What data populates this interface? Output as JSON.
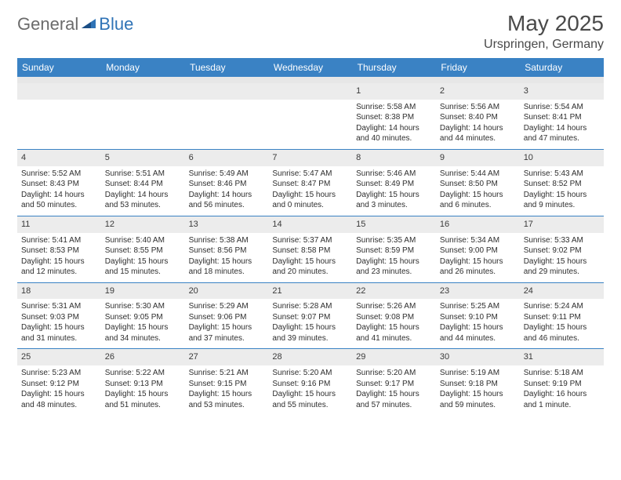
{
  "brand": {
    "part1": "General",
    "part2": "Blue"
  },
  "title": "May 2025",
  "location": "Urspringen, Germany",
  "colors": {
    "header_bg": "#3a82c4",
    "header_text": "#ffffff",
    "daynum_bg": "#ececec",
    "body_text": "#2e2e2e",
    "accent": "#2f73b6"
  },
  "dow": [
    "Sunday",
    "Monday",
    "Tuesday",
    "Wednesday",
    "Thursday",
    "Friday",
    "Saturday"
  ],
  "weeks": [
    [
      null,
      null,
      null,
      null,
      {
        "n": "1",
        "sr": "5:58 AM",
        "ss": "8:38 PM",
        "dl": "14 hours and 40 minutes."
      },
      {
        "n": "2",
        "sr": "5:56 AM",
        "ss": "8:40 PM",
        "dl": "14 hours and 44 minutes."
      },
      {
        "n": "3",
        "sr": "5:54 AM",
        "ss": "8:41 PM",
        "dl": "14 hours and 47 minutes."
      }
    ],
    [
      {
        "n": "4",
        "sr": "5:52 AM",
        "ss": "8:43 PM",
        "dl": "14 hours and 50 minutes."
      },
      {
        "n": "5",
        "sr": "5:51 AM",
        "ss": "8:44 PM",
        "dl": "14 hours and 53 minutes."
      },
      {
        "n": "6",
        "sr": "5:49 AM",
        "ss": "8:46 PM",
        "dl": "14 hours and 56 minutes."
      },
      {
        "n": "7",
        "sr": "5:47 AM",
        "ss": "8:47 PM",
        "dl": "15 hours and 0 minutes."
      },
      {
        "n": "8",
        "sr": "5:46 AM",
        "ss": "8:49 PM",
        "dl": "15 hours and 3 minutes."
      },
      {
        "n": "9",
        "sr": "5:44 AM",
        "ss": "8:50 PM",
        "dl": "15 hours and 6 minutes."
      },
      {
        "n": "10",
        "sr": "5:43 AM",
        "ss": "8:52 PM",
        "dl": "15 hours and 9 minutes."
      }
    ],
    [
      {
        "n": "11",
        "sr": "5:41 AM",
        "ss": "8:53 PM",
        "dl": "15 hours and 12 minutes."
      },
      {
        "n": "12",
        "sr": "5:40 AM",
        "ss": "8:55 PM",
        "dl": "15 hours and 15 minutes."
      },
      {
        "n": "13",
        "sr": "5:38 AM",
        "ss": "8:56 PM",
        "dl": "15 hours and 18 minutes."
      },
      {
        "n": "14",
        "sr": "5:37 AM",
        "ss": "8:58 PM",
        "dl": "15 hours and 20 minutes."
      },
      {
        "n": "15",
        "sr": "5:35 AM",
        "ss": "8:59 PM",
        "dl": "15 hours and 23 minutes."
      },
      {
        "n": "16",
        "sr": "5:34 AM",
        "ss": "9:00 PM",
        "dl": "15 hours and 26 minutes."
      },
      {
        "n": "17",
        "sr": "5:33 AM",
        "ss": "9:02 PM",
        "dl": "15 hours and 29 minutes."
      }
    ],
    [
      {
        "n": "18",
        "sr": "5:31 AM",
        "ss": "9:03 PM",
        "dl": "15 hours and 31 minutes."
      },
      {
        "n": "19",
        "sr": "5:30 AM",
        "ss": "9:05 PM",
        "dl": "15 hours and 34 minutes."
      },
      {
        "n": "20",
        "sr": "5:29 AM",
        "ss": "9:06 PM",
        "dl": "15 hours and 37 minutes."
      },
      {
        "n": "21",
        "sr": "5:28 AM",
        "ss": "9:07 PM",
        "dl": "15 hours and 39 minutes."
      },
      {
        "n": "22",
        "sr": "5:26 AM",
        "ss": "9:08 PM",
        "dl": "15 hours and 41 minutes."
      },
      {
        "n": "23",
        "sr": "5:25 AM",
        "ss": "9:10 PM",
        "dl": "15 hours and 44 minutes."
      },
      {
        "n": "24",
        "sr": "5:24 AM",
        "ss": "9:11 PM",
        "dl": "15 hours and 46 minutes."
      }
    ],
    [
      {
        "n": "25",
        "sr": "5:23 AM",
        "ss": "9:12 PM",
        "dl": "15 hours and 48 minutes."
      },
      {
        "n": "26",
        "sr": "5:22 AM",
        "ss": "9:13 PM",
        "dl": "15 hours and 51 minutes."
      },
      {
        "n": "27",
        "sr": "5:21 AM",
        "ss": "9:15 PM",
        "dl": "15 hours and 53 minutes."
      },
      {
        "n": "28",
        "sr": "5:20 AM",
        "ss": "9:16 PM",
        "dl": "15 hours and 55 minutes."
      },
      {
        "n": "29",
        "sr": "5:20 AM",
        "ss": "9:17 PM",
        "dl": "15 hours and 57 minutes."
      },
      {
        "n": "30",
        "sr": "5:19 AM",
        "ss": "9:18 PM",
        "dl": "15 hours and 59 minutes."
      },
      {
        "n": "31",
        "sr": "5:18 AM",
        "ss": "9:19 PM",
        "dl": "16 hours and 1 minute."
      }
    ]
  ],
  "labels": {
    "sunrise": "Sunrise:",
    "sunset": "Sunset:",
    "daylight": "Daylight:"
  }
}
